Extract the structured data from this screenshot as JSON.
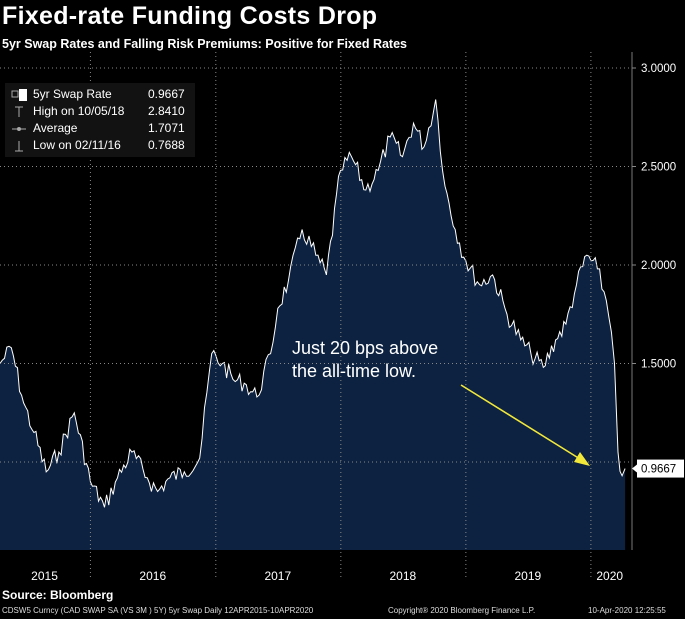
{
  "header": {
    "title": "Fixed-rate Funding Costs Drop",
    "subtitle": "5yr Swap Rates and Falling Risk Premiums: Positive for Fixed Rates"
  },
  "legend": {
    "rows": [
      {
        "label": "5yr Swap Rate",
        "value": "0.9667"
      },
      {
        "label": "High on 10/05/18",
        "value": "2.8410"
      },
      {
        "label": "Average",
        "value": "1.7071"
      },
      {
        "label": "Low on 02/11/16",
        "value": "0.7688"
      }
    ]
  },
  "annotation": {
    "line1": "Just 20 bps above",
    "line2": "the all-time low."
  },
  "last_value_label": "0.9667",
  "footer": {
    "source": "Source: Bloomberg",
    "left": "CDSW5 Curncy (CAD SWAP SA (VS 3M ) 5Y) 5yr Swap  Daily 12APR2015-10APR2020",
    "mid": "Copyright® 2020 Bloomberg Finance L.P.",
    "right": "10-Apr-2020 12:25:55"
  },
  "colors": {
    "area_fill": "#0c2240",
    "line": "#ffffff",
    "arrow": "#f2e83a",
    "background": "#000000"
  },
  "chart_data": {
    "type": "area",
    "series": [
      {
        "name": "5yr Swap Rate",
        "x": [
          "2015-04-12",
          "2015-05-15",
          "2015-06-20",
          "2015-07-20",
          "2015-08-25",
          "2015-10-01",
          "2015-11-15",
          "2016-01-01",
          "2016-02-11",
          "2016-03-20",
          "2016-05-01",
          "2016-06-15",
          "2016-07-15",
          "2016-08-20",
          "2016-10-01",
          "2016-11-15",
          "2016-12-20",
          "2017-01-20",
          "2017-02-20",
          "2017-03-25",
          "2017-05-01",
          "2017-06-10",
          "2017-07-01",
          "2017-08-01",
          "2017-09-10",
          "2017-10-20",
          "2017-11-20",
          "2017-12-31",
          "2018-02-01",
          "2018-03-15",
          "2018-04-20",
          "2018-05-25",
          "2018-06-30",
          "2018-08-01",
          "2018-09-01",
          "2018-10-05",
          "2018-11-01",
          "2018-12-01",
          "2019-01-01",
          "2019-02-10",
          "2019-03-20",
          "2019-05-01",
          "2019-06-10",
          "2019-07-10",
          "2019-08-15",
          "2019-09-20",
          "2019-10-20",
          "2019-11-20",
          "2019-12-20",
          "2020-01-20",
          "2020-02-15",
          "2020-03-01",
          "2020-03-10",
          "2020-03-20",
          "2020-04-01",
          "2020-04-10"
        ],
        "y": [
          1.5,
          1.58,
          1.3,
          1.15,
          0.95,
          1.05,
          1.25,
          0.9,
          0.77,
          0.92,
          1.05,
          0.92,
          0.85,
          0.92,
          0.95,
          1.02,
          1.55,
          1.5,
          1.42,
          1.4,
          1.33,
          1.55,
          1.78,
          1.92,
          2.18,
          2.05,
          1.95,
          2.48,
          2.55,
          2.38,
          2.48,
          2.65,
          2.55,
          2.72,
          2.6,
          2.84,
          2.4,
          2.18,
          2.02,
          1.9,
          1.95,
          1.75,
          1.62,
          1.55,
          1.48,
          1.62,
          1.7,
          1.9,
          2.05,
          1.98,
          1.82,
          1.66,
          1.5,
          1.05,
          0.93,
          0.9667
        ]
      }
    ],
    "xlabels": [
      "2015",
      "2016",
      "2017",
      "2018",
      "2019",
      "2020"
    ],
    "yticks": [
      "3.0000",
      "2.5000",
      "2.0000",
      "1.5000"
    ],
    "ylim": [
      0.5,
      3.0
    ],
    "xlim": [
      "2015-04-12",
      "2020-04-30"
    ],
    "grid": true
  }
}
